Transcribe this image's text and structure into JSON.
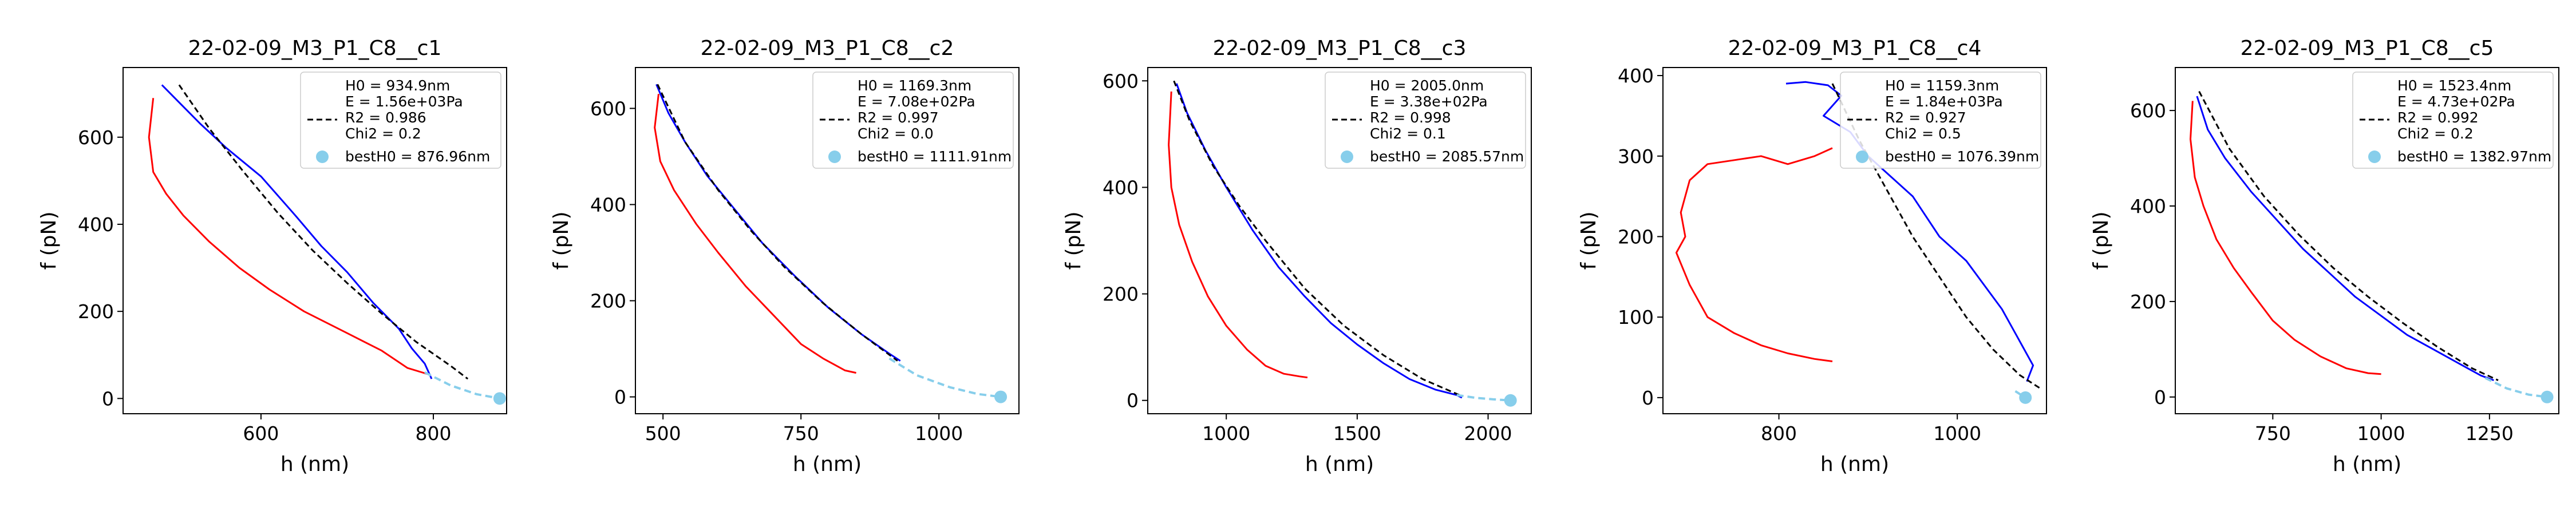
{
  "chart_data": [
    {
      "type": "line",
      "title": "22-02-09_M3_P1_C8__c1",
      "xlabel": "h (nm)",
      "ylabel": "f (pN)",
      "xlim": [
        440,
        885
      ],
      "ylim": [
        -35,
        760
      ],
      "xticks": [
        600,
        800
      ],
      "yticks": [
        0,
        200,
        400,
        600
      ],
      "legend": [
        "H0 = 934.9nm",
        "E = 1.56e+03Pa",
        "R2 = 0.986",
        "Chi2 = 0.2",
        "bestH0 = 876.96nm"
      ],
      "series": [
        {
          "role": "approach",
          "color": "#0000ff",
          "x": [
            485,
            505,
            530,
            560,
            600,
            640,
            670,
            700,
            730,
            760,
            775,
            790,
            798
          ],
          "y": [
            720,
            680,
            630,
            575,
            510,
            420,
            350,
            290,
            220,
            160,
            115,
            80,
            45
          ]
        },
        {
          "role": "retract",
          "color": "#ff0000",
          "x": [
            475,
            470,
            475,
            490,
            510,
            540,
            575,
            610,
            650,
            700,
            740,
            770,
            795
          ],
          "y": [
            690,
            600,
            520,
            470,
            420,
            360,
            300,
            250,
            200,
            150,
            110,
            70,
            55
          ]
        },
        {
          "role": "fit",
          "color": "#000000",
          "x": [
            505,
            540,
            580,
            620,
            660,
            700,
            740,
            780,
            820,
            840
          ],
          "y": [
            720,
            620,
            520,
            425,
            340,
            265,
            195,
            130,
            75,
            45
          ]
        },
        {
          "role": "extrapolation",
          "color": "#87ceeb",
          "x": [
            790,
            820,
            850,
            877
          ],
          "y": [
            60,
            30,
            10,
            0
          ]
        }
      ],
      "best_point": {
        "x": 876.96,
        "y": 0
      }
    },
    {
      "type": "line",
      "title": "22-02-09_M3_P1_C8__c2",
      "xlabel": "h (nm)",
      "ylabel": "f (pN)",
      "xlim": [
        450,
        1145
      ],
      "ylim": [
        -35,
        685
      ],
      "xticks": [
        500,
        750,
        1000
      ],
      "yticks": [
        0,
        200,
        400,
        600
      ],
      "legend": [
        "H0 = 1169.3nm",
        "E = 7.08e+02Pa",
        "R2 = 0.997",
        "Chi2 = 0.0",
        "bestH0 = 1111.91nm"
      ],
      "series": [
        {
          "role": "approach",
          "color": "#0000ff",
          "x": [
            488,
            510,
            540,
            580,
            630,
            680,
            740,
            800,
            860,
            910,
            930
          ],
          "y": [
            650,
            590,
            530,
            460,
            390,
            320,
            250,
            185,
            130,
            90,
            75
          ]
        },
        {
          "role": "retract",
          "color": "#ff0000",
          "x": [
            492,
            485,
            495,
            520,
            560,
            600,
            650,
            700,
            750,
            790,
            830,
            850
          ],
          "y": [
            630,
            560,
            490,
            430,
            360,
            300,
            230,
            170,
            110,
            80,
            55,
            50
          ]
        },
        {
          "role": "fit",
          "color": "#000000",
          "x": [
            490,
            540,
            600,
            660,
            720,
            790,
            860,
            925
          ],
          "y": [
            650,
            530,
            430,
            345,
            270,
            195,
            130,
            75
          ]
        },
        {
          "role": "extrapolation",
          "color": "#87ceeb",
          "x": [
            910,
            960,
            1020,
            1070,
            1112
          ],
          "y": [
            80,
            45,
            20,
            6,
            0
          ]
        }
      ],
      "best_point": {
        "x": 1111.91,
        "y": 0
      }
    },
    {
      "type": "line",
      "title": "22-02-09_M3_P1_C8__c3",
      "xlabel": "h (nm)",
      "ylabel": "f (pN)",
      "xlim": [
        700,
        2165
      ],
      "ylim": [
        -25,
        625
      ],
      "xticks": [
        1000,
        1500,
        2000
      ],
      "yticks": [
        0,
        200,
        400,
        600
      ],
      "legend": [
        "H0 = 2005.0nm",
        "E = 3.38e+02Pa",
        "R2 = 0.998",
        "Chi2 = 0.1",
        "bestH0 = 2085.57nm"
      ],
      "series": [
        {
          "role": "approach",
          "color": "#0000ff",
          "x": [
            810,
            850,
            920,
            1000,
            1100,
            1200,
            1300,
            1400,
            1500,
            1600,
            1700,
            1800,
            1880,
            1900
          ],
          "y": [
            595,
            540,
            470,
            400,
            320,
            250,
            195,
            145,
            105,
            70,
            40,
            20,
            10,
            5
          ]
        },
        {
          "role": "retract",
          "color": "#ff0000",
          "x": [
            790,
            780,
            790,
            820,
            870,
            930,
            1000,
            1080,
            1150,
            1220,
            1280,
            1310
          ],
          "y": [
            580,
            480,
            400,
            330,
            260,
            195,
            140,
            95,
            65,
            50,
            45,
            43
          ]
        },
        {
          "role": "fit",
          "color": "#000000",
          "x": [
            800,
            860,
            950,
            1050,
            1150,
            1300,
            1450,
            1600,
            1750,
            1900
          ],
          "y": [
            600,
            525,
            440,
            365,
            300,
            210,
            140,
            85,
            40,
            8
          ]
        },
        {
          "role": "extrapolation",
          "color": "#87ceeb",
          "x": [
            1880,
            1950,
            2020,
            2085
          ],
          "y": [
            10,
            5,
            2,
            0
          ]
        }
      ],
      "best_point": {
        "x": 2085.57,
        "y": 0
      }
    },
    {
      "type": "line",
      "title": "22-02-09_M3_P1_C8__c4",
      "xlabel": "h (nm)",
      "ylabel": "f (pN)",
      "xlim": [
        670,
        1100
      ],
      "ylim": [
        -20,
        410
      ],
      "xticks": [
        800,
        1000
      ],
      "yticks": [
        0,
        100,
        200,
        300,
        400
      ],
      "legend": [
        "H0 = 1159.3nm",
        "E = 1.84e+03Pa",
        "R2 = 0.927",
        "Chi2 = 0.5",
        "bestH0 = 1076.39nm"
      ],
      "series": [
        {
          "role": "approach",
          "color": "#0000ff",
          "x": [
            808,
            830,
            855,
            870,
            850,
            880,
            900,
            920,
            950,
            980,
            1010,
            1030,
            1050,
            1065,
            1075,
            1085,
            1078
          ],
          "y": [
            390,
            392,
            388,
            375,
            350,
            330,
            300,
            280,
            250,
            200,
            170,
            140,
            110,
            80,
            60,
            40,
            20
          ]
        },
        {
          "role": "retract",
          "color": "#ff0000",
          "x": [
            860,
            840,
            810,
            780,
            750,
            720,
            700,
            690,
            695,
            685,
            700,
            720,
            750,
            780,
            810,
            840,
            860
          ],
          "y": [
            310,
            300,
            290,
            300,
            295,
            290,
            270,
            230,
            200,
            180,
            140,
            100,
            80,
            65,
            55,
            48,
            45
          ]
        },
        {
          "role": "fit",
          "color": "#000000",
          "x": [
            860,
            890,
            920,
            950,
            980,
            1010,
            1040,
            1070,
            1095
          ],
          "y": [
            390,
            320,
            260,
            200,
            150,
            100,
            60,
            28,
            10
          ]
        },
        {
          "role": "extrapolation",
          "color": "#87ceeb",
          "x": [
            1065,
            1072,
            1076
          ],
          "y": [
            8,
            3,
            0
          ]
        }
      ],
      "best_point": {
        "x": 1076.39,
        "y": 0
      }
    },
    {
      "type": "line",
      "title": "22-02-09_M3_P1_C8__c5",
      "xlabel": "h (nm)",
      "ylabel": "f (pN)",
      "xlim": [
        525,
        1410
      ],
      "ylim": [
        -35,
        690
      ],
      "xticks": [
        750,
        1000,
        1250
      ],
      "yticks": [
        0,
        200,
        400,
        600
      ],
      "legend": [
        "H0 = 1523.4nm",
        "E = 4.73e+02Pa",
        "R2 = 0.992",
        "Chi2 = 0.2",
        "bestH0 = 1382.97nm"
      ],
      "series": [
        {
          "role": "approach",
          "color": "#0000ff",
          "x": [
            575,
            600,
            640,
            700,
            760,
            820,
            880,
            940,
            1000,
            1060,
            1120,
            1180,
            1230,
            1260
          ],
          "y": [
            630,
            560,
            500,
            430,
            370,
            310,
            260,
            210,
            170,
            130,
            100,
            70,
            45,
            35
          ]
        },
        {
          "role": "retract",
          "color": "#ff0000",
          "x": [
            565,
            560,
            570,
            590,
            620,
            660,
            700,
            750,
            800,
            860,
            920,
            970,
            1000
          ],
          "y": [
            620,
            540,
            460,
            400,
            330,
            270,
            220,
            160,
            120,
            85,
            60,
            50,
            48
          ]
        },
        {
          "role": "fit",
          "color": "#000000",
          "x": [
            580,
            650,
            730,
            810,
            890,
            970,
            1050,
            1130,
            1210,
            1270
          ],
          "y": [
            640,
            520,
            420,
            340,
            270,
            210,
            155,
            105,
            60,
            35
          ]
        },
        {
          "role": "extrapolation",
          "color": "#87ceeb",
          "x": [
            1240,
            1290,
            1340,
            1383
          ],
          "y": [
            40,
            18,
            5,
            0
          ]
        }
      ],
      "best_point": {
        "x": 1382.97,
        "y": 0
      }
    }
  ]
}
